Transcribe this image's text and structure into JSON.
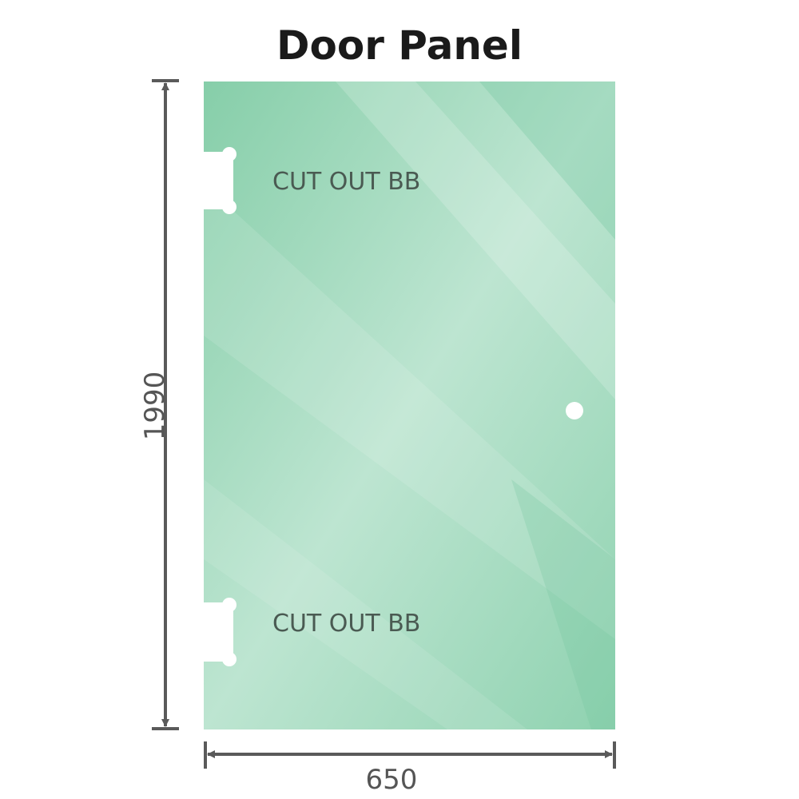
{
  "title": "Door Panel",
  "dimensions": {
    "height": "1990",
    "width": "650"
  },
  "cutouts": [
    {
      "label": "CUT OUT BB"
    },
    {
      "label": "CUT OUT BB"
    }
  ],
  "colors": {
    "glass": "#8fd1b0",
    "glass_light": "#bfe6d2",
    "dimension_line": "#5a5a5a",
    "text": "#4a5a52"
  }
}
